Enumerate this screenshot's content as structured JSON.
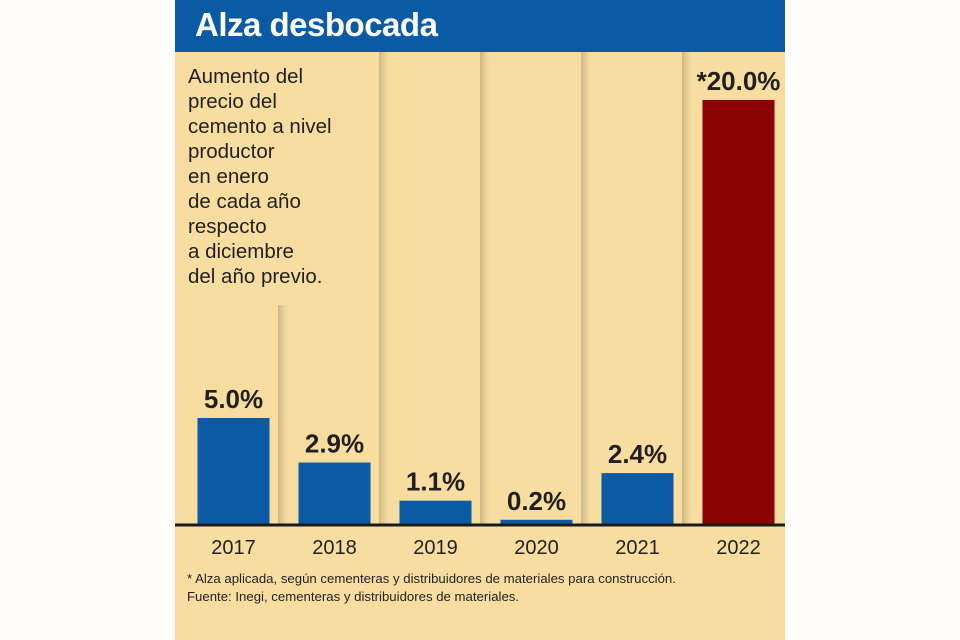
{
  "title": "Alza desbocada",
  "description_lines": [
    "Aumento del",
    "precio del",
    "cemento a nivel",
    "productor",
    "en enero",
    "de cada año",
    "respecto",
    "a diciembre",
    "del año previo."
  ],
  "footnotes": [
    "* Alza aplicada, según cementeras y distribuidores de materiales para construcción.",
    "Fuente: Inegi, cementeras y distribuidores de materiales."
  ],
  "colors": {
    "header": "#0a5aa4",
    "bar": "#0a5aa4",
    "highlight_bar": "#8b0000",
    "background": "#f7dea0"
  },
  "chart_data": {
    "type": "bar",
    "categories": [
      "2017",
      "2018",
      "2019",
      "2020",
      "2021",
      "2022"
    ],
    "values": [
      5.0,
      2.9,
      1.1,
      0.2,
      2.4,
      20.0
    ],
    "data_labels": [
      "5.0%",
      "2.9%",
      "1.1%",
      "0.2%",
      "2.4%",
      "*20.0%"
    ],
    "highlight_index": 5,
    "unit": "%",
    "ylim": [
      0,
      20
    ]
  }
}
